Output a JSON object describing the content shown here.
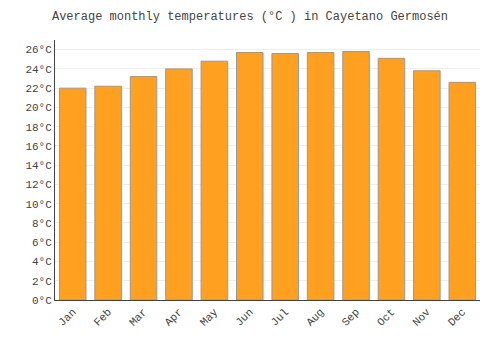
{
  "chart_data": {
    "type": "bar",
    "title": "Average monthly temperatures (°C ) in Cayetano Germosén",
    "categories": [
      "Jan",
      "Feb",
      "Mar",
      "Apr",
      "May",
      "Jun",
      "Jul",
      "Aug",
      "Sep",
      "Oct",
      "Nov",
      "Dec"
    ],
    "values": [
      22.0,
      22.2,
      23.2,
      24.0,
      24.8,
      25.7,
      25.6,
      25.7,
      25.8,
      25.1,
      23.8,
      22.6
    ],
    "color": "#FFA020",
    "ylim": [
      0,
      27
    ],
    "yticks": [
      {
        "value": 0,
        "label": "0°C"
      },
      {
        "value": 2,
        "label": "2°C"
      },
      {
        "value": 4,
        "label": "4°C"
      },
      {
        "value": 6,
        "label": "6°C"
      },
      {
        "value": 8,
        "label": "8°C"
      },
      {
        "value": 10,
        "label": "10°C"
      },
      {
        "value": 12,
        "label": "12°C"
      },
      {
        "value": 14,
        "label": "14°C"
      },
      {
        "value": 16,
        "label": "16°C"
      },
      {
        "value": 18,
        "label": "18°C"
      },
      {
        "value": 20,
        "label": "20°C"
      },
      {
        "value": 22,
        "label": "22°C"
      },
      {
        "value": 24,
        "label": "24°C"
      },
      {
        "value": 26,
        "label": "26°C"
      }
    ],
    "grid": true
  }
}
